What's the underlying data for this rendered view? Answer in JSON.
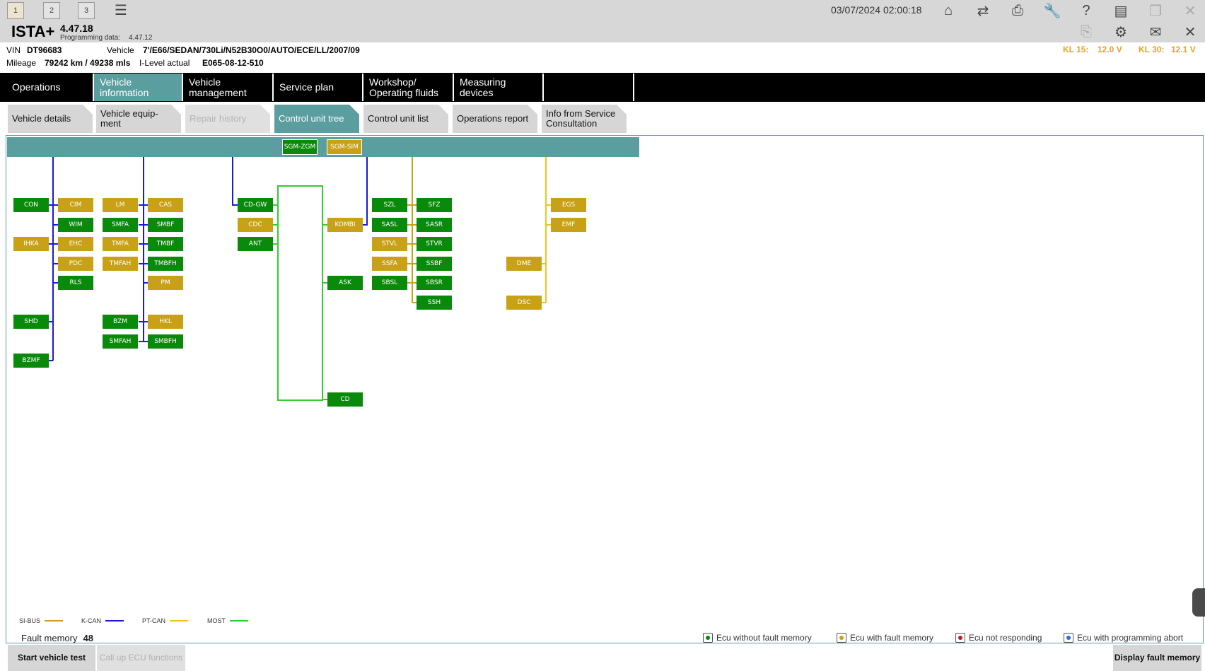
{
  "window": {
    "session_tabs": [
      "1",
      "2",
      "3"
    ],
    "datetime": "03/07/2024 02:00:18"
  },
  "app": {
    "name": "ISTA+",
    "version": "4.47.18",
    "programming_label": "Programming data:",
    "programming_version": "4.47.12"
  },
  "vehicle": {
    "vin_label": "VIN",
    "vin": "DT96683",
    "vehicle_label": "Vehicle",
    "vehicle": "7'/E66/SEDAN/730Li/N52B30O0/AUTO/ECE/LL/2007/09",
    "mileage_label": "Mileage",
    "mileage": "79242 km / 49238 mls",
    "ilevel_label": "I-Level actual",
    "ilevel": "E065-08-12-510",
    "kl15_label": "KL 15:",
    "kl15": "12.0 V",
    "kl30_label": "KL 30:",
    "kl30": "12.1 V"
  },
  "main_tabs": [
    "Operations",
    "Vehicle information",
    "Vehicle management",
    "Service plan",
    "Workshop/ Operating fluids",
    "Measuring devices"
  ],
  "sub_tabs": [
    "Vehicle details",
    "Vehicle equip- ment",
    "Repair history",
    "Control unit tree",
    "Control unit list",
    "Operations report",
    "Info from Service Consultation"
  ],
  "ecus": {
    "SGM-ZGM": "SGM-ZGM",
    "SGM-SIM": "SGM-SIM",
    "CON": "CON",
    "CIM": "CIM",
    "LM": "LM",
    "CAS": "CAS",
    "WIM": "WIM",
    "SMFA": "SMFA",
    "SMBF": "SMBF",
    "IHKA": "IHKA",
    "EHC": "EHC",
    "TMFA": "TMFA",
    "TMBF": "TMBF",
    "PDC": "PDC",
    "TMFAH": "TMFAH",
    "TMBFH": "TMBFH",
    "RLS": "RLS",
    "PM": "PM",
    "SHD": "SHD",
    "BZM": "BZM",
    "HKL": "HKL",
    "SMFAH": "SMFAH",
    "SMBFH": "SMBFH",
    "BZMF": "BZMF",
    "CD-GW": "CD-GW",
    "CDC": "CDC",
    "ANT": "ANT",
    "KOMBI": "KOMBI",
    "ASK": "ASK",
    "CD": "CD",
    "SZL": "SZL",
    "SFZ": "SFZ",
    "SASL": "SASL",
    "SASR": "SASR",
    "STVL": "STVL",
    "STVR": "STVR",
    "SSFA": "SSFA",
    "SSBF": "SSBF",
    "SBSL": "SBSL",
    "SBSR": "SBSR",
    "SSH": "SSH",
    "DME": "DME",
    "DSC": "DSC",
    "EGS": "EGS",
    "EMF": "EMF"
  },
  "legend": {
    "sibus": "SI-BUS",
    "kcan": "K-CAN",
    "ptcan": "PT-CAN",
    "most": "MOST",
    "colors": {
      "sibus": "#c8a117",
      "kcan": "#1a1ad8",
      "ptcan": "#f0c419",
      "most": "#33cc33"
    }
  },
  "fault_memory": {
    "label": "Fault memory",
    "count": "48"
  },
  "status_legend": {
    "ok": "Ecu without fault memory",
    "fault": "Ecu with fault memory",
    "noresp": "Ecu not responding",
    "progabort": "Ecu with programming abort"
  },
  "buttons": {
    "start_test": "Start vehicle test",
    "call_ecu": "Call up ECU functions",
    "display_fault": "Display fault memory"
  },
  "colors": {
    "accent": "#5b9ea0",
    "ecu_ok": "#0a8a0a",
    "ecu_fault": "#c8a117"
  }
}
